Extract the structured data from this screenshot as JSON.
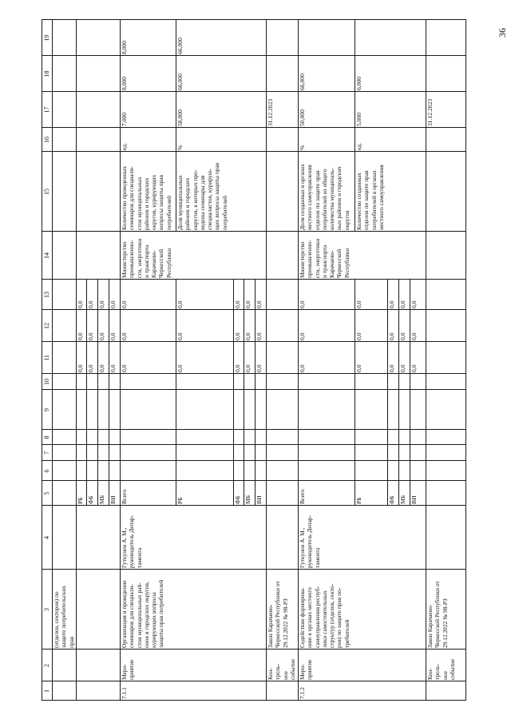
{
  "page_number": "36",
  "header": [
    "1",
    "2",
    "3",
    "4",
    "5",
    "6",
    "7",
    "8",
    "9",
    "10",
    "11",
    "12",
    "13",
    "14",
    "15",
    "16",
    "17",
    "18",
    "19"
  ],
  "continuation": {
    "name": "(отделов, секторов) по\nзащите потребительских\nправ",
    "funding": [
      {
        "label": "РБ",
        "values": [
          "0,0",
          "0,0",
          "0,0"
        ]
      },
      {
        "label": "ФБ",
        "values": [
          "0,0",
          "0,0",
          "0,0"
        ]
      },
      {
        "label": "МБ",
        "values": [
          "0,0",
          "0,0",
          "0,0"
        ]
      },
      {
        "label": "ВИ",
        "values": [
          "0,0",
          "0,0",
          "0,0"
        ]
      }
    ]
  },
  "activities": [
    {
      "number": "7.1.1",
      "type": "Меро-\nприятие",
      "name": "Организация и проведение\nсеминаров для специали-\nстов муниципальных рай-\nонов и городских округов,\nкурирующих вопросы\nзащиты прав потребителей",
      "responsible": "Гуткунов А. М.,\nруководитель Депар-\nтамента",
      "funding": [
        {
          "label": "Всего",
          "values": [
            "0,0",
            "0,0",
            "0,0"
          ]
        },
        {
          "label": "РБ",
          "values": [
            "0,0",
            "0,0",
            "0,0"
          ]
        },
        {
          "label": "ФБ",
          "values": [
            "0,0",
            "0,0",
            "0,0"
          ]
        },
        {
          "label": "МБ",
          "values": [
            "0,0",
            "0,0",
            "0,0"
          ]
        },
        {
          "label": "ВИ",
          "values": [
            "0,0",
            "0,0",
            "0,0"
          ]
        }
      ],
      "executor": "Министерство\nпромышленно-\nсти, энергетики\nи транспорта\nКарачаево-\nЧеркесской\nРеспублики",
      "indicators": [
        {
          "name": "Количество  проведенных\nсеминаров для специали-\nстов муниципальных\nрайонов и городских\nокругов,  курирующих\nвопросы защиты прав\nпотребителей",
          "unit": "ед.",
          "v17": "7,000",
          "v18": "8,000",
          "v19": "8,000"
        },
        {
          "name": "Доля муниципальных\nрайонов и городских\nокругов, в которых про-\nведены семинары для\nспециалистов, курирую-\nщих вопросы защиты прав\nпотребителей",
          "unit": "%",
          "v17": "58,000",
          "v18": "66,000",
          "v19": "66,000"
        }
      ],
      "control": {
        "type": "Кон-\nтроль-\nное\nсобытие",
        "name": "Закон Карачаево-\nЧеркесской Республики от\n29.12.2022 № 98-РЗ",
        "date": "31.12.2023"
      }
    },
    {
      "number": "7.1.2",
      "type": "Меро-\nприятие",
      "name": "Содействие формирова-\nнию в органах местного\nсамоуправления респуб-\nлики самостоятельных\nструктур (отделов, секто-\nров) по защите прав по-\nтребителей",
      "responsible": "Гуткунов А. М.,\nруководитель Депар-\nтамента",
      "funding": [
        {
          "label": "Всего",
          "values": [
            "0,0",
            "0,0",
            "0,0"
          ]
        },
        {
          "label": "РБ",
          "values": [
            "0,0",
            "0,0",
            "0,0"
          ]
        },
        {
          "label": "ФБ",
          "values": [
            "0,0",
            "0,0",
            "0,0"
          ]
        },
        {
          "label": "МБ",
          "values": [
            "0,0",
            "0,0",
            "0,0"
          ]
        },
        {
          "label": "ВИ",
          "values": [
            "0,0",
            "0,0",
            "0,0"
          ]
        }
      ],
      "executor": "Министерство\nпромышленно-\nсти, энергетики\nи транспорта\nКарачаево-\nЧеркесской\nРеспублики",
      "indicators": [
        {
          "name": "Доля созданных в органах\nместного самоуправления\nотделов по защите прав\nпотребителей из общего\nколичества муниципаль-\nных районов и городских\nокругов",
          "unit": "%",
          "v17": "50,000",
          "v18": "66,000",
          "v19": ""
        },
        {
          "name": "Количество созданных\nотделов по защите прав\nпотребителей в органах\nместного самоуправления",
          "unit": "ед.",
          "v17": "5,000",
          "v18": "6,000",
          "v19": ""
        }
      ],
      "control": {
        "type": "Кон-\nтроль-\nное\nсобытие",
        "name": "Закон Карачаево-\nЧеркесской Республики от\n29.12.2022 № 98-РЗ",
        "date": "31.12.2023"
      }
    }
  ]
}
